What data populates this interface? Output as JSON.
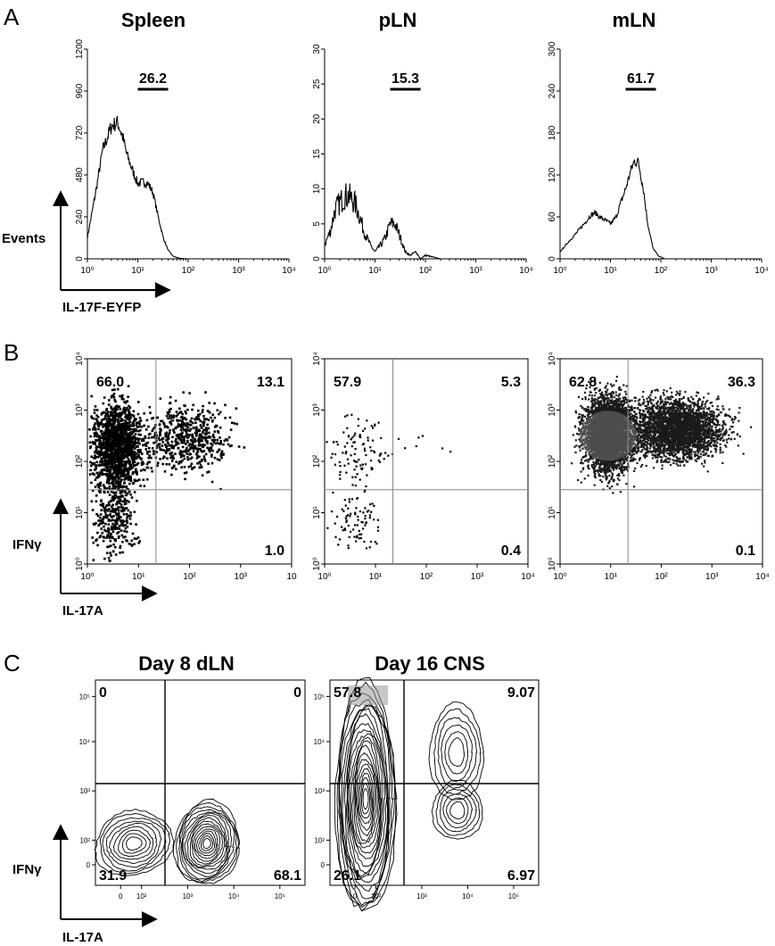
{
  "panels": [
    {
      "id": "A",
      "label": "A"
    },
    {
      "id": "B",
      "label": "B"
    },
    {
      "id": "C",
      "label": "C"
    }
  ],
  "axis_labels": {
    "A_y": "Events",
    "A_x": "IL-17F-EYFP",
    "B_y": "IFNγ",
    "B_x": "IL-17A",
    "C_y": "IFNγ",
    "C_x": "IL-17A"
  },
  "chart_data": [
    {
      "type": "histogram",
      "panel": "A",
      "title": "Spleen",
      "xscale": "log",
      "xlim": [
        1,
        10000
      ],
      "xticks": [
        "10⁰",
        "10¹",
        "10²",
        "10³",
        "10⁴"
      ],
      "yticks": [
        "0",
        "240",
        "480",
        "720",
        "960",
        "1200"
      ],
      "ylim": [
        0,
        1200
      ],
      "gate": {
        "label": "26.2",
        "x_range": [
          10,
          40
        ]
      },
      "x": [
        1,
        1.5,
        2,
        3,
        4,
        5,
        6,
        8,
        10,
        13,
        16,
        20,
        25,
        32,
        40,
        50,
        65,
        80,
        100,
        1000,
        10000
      ],
      "y": [
        120,
        400,
        620,
        760,
        780,
        700,
        600,
        500,
        430,
        440,
        430,
        380,
        250,
        120,
        50,
        15,
        4,
        1,
        0,
        0,
        0
      ]
    },
    {
      "type": "histogram",
      "panel": "A",
      "title": "pLN",
      "xscale": "log",
      "xlim": [
        1,
        10000
      ],
      "xticks": [
        "10⁰",
        "10¹",
        "10²",
        "10³",
        "10⁴"
      ],
      "yticks": [
        "0",
        "5",
        "10",
        "15",
        "20",
        "25",
        "30"
      ],
      "ylim": [
        0,
        30
      ],
      "gate": {
        "label": "15.3",
        "x_range": [
          20,
          80
        ]
      },
      "x": [
        1,
        1.3,
        1.6,
        2,
        2.5,
        3,
        4,
        5,
        6,
        8,
        10,
        13,
        16,
        20,
        25,
        32,
        40,
        50,
        65,
        80,
        100,
        200,
        1000,
        10000
      ],
      "y": [
        2,
        4,
        7,
        8,
        9,
        9,
        8,
        6,
        4,
        2,
        1,
        2,
        3,
        5,
        5,
        3,
        1,
        0.5,
        1,
        0,
        0.5,
        0,
        0,
        0
      ]
    },
    {
      "type": "histogram",
      "panel": "A",
      "title": "mLN",
      "xscale": "log",
      "xlim": [
        1,
        10000
      ],
      "xticks": [
        "10⁰",
        "10¹",
        "10²",
        "10³",
        "10⁴"
      ],
      "yticks": [
        "0",
        "60",
        "120",
        "180",
        "240",
        "300"
      ],
      "ylim": [
        0,
        300
      ],
      "gate": {
        "label": "61.7",
        "x_range": [
          20,
          80
        ]
      },
      "x": [
        1,
        1.5,
        2,
        3,
        4,
        5,
        6,
        8,
        10,
        13,
        16,
        20,
        25,
        30,
        36,
        45,
        55,
        70,
        90,
        120,
        1000,
        10000
      ],
      "y": [
        10,
        25,
        35,
        50,
        62,
        66,
        60,
        55,
        50,
        60,
        80,
        100,
        125,
        140,
        138,
        100,
        50,
        15,
        4,
        0,
        0,
        0
      ]
    },
    {
      "type": "scatter",
      "panel": "B",
      "xscale": "log",
      "yscale": "log",
      "xticks": [
        "10⁰",
        "10¹",
        "10²",
        "10³",
        "10"
      ],
      "yticks": [
        "10⁰",
        "10¹",
        "10²",
        "10³",
        "10⁴"
      ],
      "quadrant_gate": {
        "x": 22,
        "y": 28
      },
      "quadrants": {
        "UL": "66.0",
        "UR": "13.1",
        "LR": "1.0"
      }
    },
    {
      "type": "scatter",
      "panel": "B",
      "xscale": "log",
      "yscale": "log",
      "xticks": [
        "10⁰",
        "10¹",
        "10²",
        "10³",
        "10⁴"
      ],
      "yticks": [
        "10⁰",
        "10¹",
        "10²",
        "10³",
        "10⁴"
      ],
      "quadrant_gate": {
        "x": 22,
        "y": 28
      },
      "quadrants": {
        "UL": "57.9",
        "UR": "5.3",
        "LR": "0.4"
      }
    },
    {
      "type": "scatter",
      "panel": "B",
      "xscale": "log",
      "yscale": "log",
      "xticks": [
        "10⁰",
        "10¹",
        "10²",
        "10³",
        "10⁴"
      ],
      "yticks": [
        "10⁰",
        "10¹",
        "10²",
        "10³",
        "10⁴"
      ],
      "quadrant_gate": {
        "x": 22,
        "y": 28
      },
      "quadrants": {
        "UL": "62.8",
        "UR": "36.3",
        "LR": "0.1"
      }
    },
    {
      "type": "contour",
      "panel": "C",
      "title": "Day 8 dLN",
      "xticks": [
        "0",
        "10²",
        "10³",
        "10⁴",
        "10⁵"
      ],
      "yticks": [
        "0",
        "10²",
        "10³",
        "10⁴",
        "10⁵"
      ],
      "quadrants": {
        "UL": "0",
        "UR": "0",
        "LL": "31.9",
        "LR": "68.1"
      }
    },
    {
      "type": "contour",
      "panel": "C",
      "title": "Day 16 CNS",
      "xticks": [
        "0",
        "10²",
        "10³",
        "10⁴",
        "10⁵"
      ],
      "yticks": [
        "0",
        "10²",
        "10³",
        "10⁴",
        "10⁵"
      ],
      "quadrants": {
        "UL": "57.8",
        "UR": "9.07",
        "LL": "26.1",
        "LR": "6.97"
      }
    }
  ]
}
